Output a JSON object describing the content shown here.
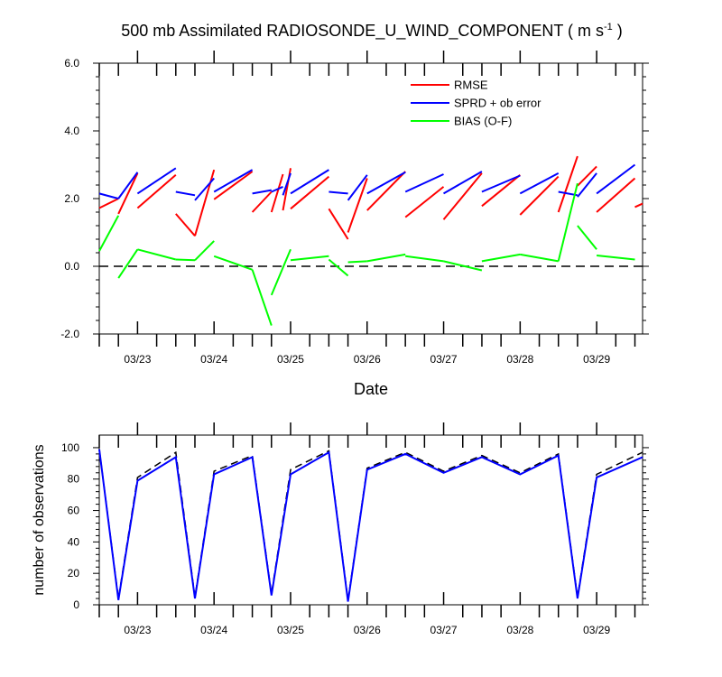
{
  "title": {
    "main": "500 mb Assimilated RADIOSONDE_U_WIND_COMPONENT ( m s",
    "sup": "-1",
    "tail": " )"
  },
  "colors": {
    "rmse": "#ff0000",
    "sprd": "#0000ff",
    "bias": "#00ff00",
    "zero": "#000000",
    "obs_used": "#0000ff",
    "obs_poss": "#000000"
  },
  "chart_data": [
    {
      "type": "line",
      "xlabel": "Date",
      "ylabel": "",
      "xlim": [
        0,
        7.1
      ],
      "ylim": [
        -2.0,
        6.0
      ],
      "yticks": [
        {
          "v": -2.0,
          "label": "-2.0"
        },
        {
          "v": 0.0,
          "label": "0.0"
        },
        {
          "v": 2.0,
          "label": "2.0"
        },
        {
          "v": 4.0,
          "label": "4.0"
        },
        {
          "v": 6.0,
          "label": "6.0"
        }
      ],
      "xticks": [
        {
          "v": 0.5,
          "label": "03/23"
        },
        {
          "v": 1.5,
          "label": "03/24"
        },
        {
          "v": 2.5,
          "label": "03/25"
        },
        {
          "v": 3.5,
          "label": "03/26"
        },
        {
          "v": 4.5,
          "label": "03/27"
        },
        {
          "v": 5.5,
          "label": "03/28"
        },
        {
          "v": 6.5,
          "label": "03/29"
        }
      ],
      "minor_xticks": [
        0.0,
        0.25,
        0.75,
        1.0,
        1.25,
        1.75,
        2.0,
        2.25,
        2.75,
        3.0,
        3.25,
        3.75,
        4.0,
        4.25,
        4.75,
        5.0,
        5.25,
        5.75,
        6.0,
        6.25,
        6.75,
        7.0
      ],
      "legend_position": "top-right",
      "reference_line": {
        "y": 0.0,
        "style": "dashed"
      },
      "series": [
        {
          "name": "RMSE",
          "color_key": "rmse",
          "segments": [
            [
              [
                0.0,
                1.72
              ],
              [
                0.25,
                2.0
              ]
            ],
            [
              [
                0.25,
                1.55
              ],
              [
                0.5,
                2.75
              ]
            ],
            [
              [
                0.5,
                1.72
              ],
              [
                1.0,
                2.7
              ]
            ],
            [
              [
                1.0,
                1.55
              ],
              [
                1.25,
                0.9
              ]
            ],
            [
              [
                1.25,
                0.9
              ],
              [
                1.5,
                2.85
              ]
            ],
            [
              [
                1.5,
                1.98
              ],
              [
                2.0,
                2.8
              ]
            ],
            [
              [
                2.0,
                1.6
              ],
              [
                2.25,
                2.2
              ]
            ],
            [
              [
                2.25,
                1.6
              ],
              [
                2.4,
                2.72
              ]
            ],
            [
              [
                2.4,
                1.65
              ],
              [
                2.5,
                2.9
              ]
            ],
            [
              [
                2.5,
                1.7
              ],
              [
                3.0,
                2.65
              ]
            ],
            [
              [
                3.0,
                1.7
              ],
              [
                3.25,
                0.8
              ]
            ],
            [
              [
                3.25,
                1.0
              ],
              [
                3.5,
                2.6
              ]
            ],
            [
              [
                3.5,
                1.65
              ],
              [
                4.0,
                2.8
              ]
            ],
            [
              [
                4.0,
                1.45
              ],
              [
                4.5,
                2.35
              ]
            ],
            [
              [
                4.5,
                1.38
              ],
              [
                5.0,
                2.75
              ]
            ],
            [
              [
                5.0,
                1.78
              ],
              [
                5.5,
                2.7
              ]
            ],
            [
              [
                5.5,
                1.52
              ],
              [
                6.0,
                2.65
              ]
            ],
            [
              [
                6.0,
                1.6
              ],
              [
                6.25,
                3.25
              ]
            ],
            [
              [
                6.25,
                2.38
              ],
              [
                6.5,
                2.95
              ]
            ],
            [
              [
                6.5,
                1.6
              ],
              [
                7.0,
                2.6
              ]
            ],
            [
              [
                7.0,
                1.75
              ],
              [
                7.1,
                1.85
              ]
            ]
          ]
        },
        {
          "name": "SPRD + ob error",
          "color_key": "sprd",
          "segments": [
            [
              [
                0.0,
                2.15
              ],
              [
                0.25,
                2.0
              ]
            ],
            [
              [
                0.25,
                2.0
              ],
              [
                0.5,
                2.78
              ]
            ],
            [
              [
                0.5,
                2.15
              ],
              [
                1.0,
                2.9
              ]
            ],
            [
              [
                1.0,
                2.2
              ],
              [
                1.25,
                2.1
              ]
            ],
            [
              [
                1.25,
                1.95
              ],
              [
                1.5,
                2.6
              ]
            ],
            [
              [
                1.5,
                2.2
              ],
              [
                2.0,
                2.85
              ]
            ],
            [
              [
                2.0,
                2.15
              ],
              [
                2.25,
                2.25
              ]
            ],
            [
              [
                2.25,
                2.2
              ],
              [
                2.4,
                2.35
              ]
            ],
            [
              [
                2.4,
                2.1
              ],
              [
                2.5,
                2.75
              ]
            ],
            [
              [
                2.5,
                2.15
              ],
              [
                3.0,
                2.85
              ]
            ],
            [
              [
                3.0,
                2.2
              ],
              [
                3.25,
                2.15
              ]
            ],
            [
              [
                3.25,
                1.95
              ],
              [
                3.5,
                2.7
              ]
            ],
            [
              [
                3.5,
                2.15
              ],
              [
                4.0,
                2.78
              ]
            ],
            [
              [
                4.0,
                2.2
              ],
              [
                4.5,
                2.72
              ]
            ],
            [
              [
                4.5,
                2.15
              ],
              [
                5.0,
                2.8
              ]
            ],
            [
              [
                5.0,
                2.2
              ],
              [
                5.5,
                2.68
              ]
            ],
            [
              [
                5.5,
                2.15
              ],
              [
                6.0,
                2.75
              ]
            ],
            [
              [
                6.0,
                2.2
              ],
              [
                6.25,
                2.1
              ]
            ],
            [
              [
                6.25,
                2.05
              ],
              [
                6.5,
                2.75
              ]
            ],
            [
              [
                6.5,
                2.15
              ],
              [
                7.0,
                3.0
              ]
            ]
          ]
        },
        {
          "name": "BIAS (O-F)",
          "color_key": "bias",
          "segments": [
            [
              [
                0.0,
                0.45
              ],
              [
                0.25,
                1.5
              ]
            ],
            [
              [
                0.25,
                -0.35
              ],
              [
                0.5,
                0.5
              ]
            ],
            [
              [
                0.5,
                0.5
              ],
              [
                1.0,
                0.2
              ]
            ],
            [
              [
                1.0,
                0.2
              ],
              [
                1.25,
                0.18
              ]
            ],
            [
              [
                1.25,
                0.18
              ],
              [
                1.5,
                0.75
              ]
            ],
            [
              [
                1.5,
                0.3
              ],
              [
                2.0,
                -0.1
              ]
            ],
            [
              [
                2.0,
                -0.1
              ],
              [
                2.25,
                -1.75
              ]
            ],
            [
              [
                2.25,
                -0.85
              ],
              [
                2.5,
                0.5
              ]
            ],
            [
              [
                2.5,
                0.18
              ],
              [
                3.0,
                0.3
              ]
            ],
            [
              [
                3.0,
                0.2
              ],
              [
                3.25,
                -0.28
              ]
            ],
            [
              [
                3.25,
                0.12
              ],
              [
                3.5,
                0.15
              ]
            ],
            [
              [
                3.5,
                0.15
              ],
              [
                4.0,
                0.35
              ]
            ],
            [
              [
                4.0,
                0.3
              ],
              [
                4.5,
                0.15
              ]
            ],
            [
              [
                4.5,
                0.15
              ],
              [
                5.0,
                -0.12
              ]
            ],
            [
              [
                5.0,
                0.15
              ],
              [
                5.5,
                0.35
              ]
            ],
            [
              [
                5.5,
                0.35
              ],
              [
                6.0,
                0.15
              ]
            ],
            [
              [
                6.0,
                0.15
              ],
              [
                6.25,
                2.45
              ]
            ],
            [
              [
                6.25,
                1.2
              ],
              [
                6.5,
                0.5
              ]
            ],
            [
              [
                6.5,
                0.32
              ],
              [
                7.0,
                0.2
              ]
            ]
          ]
        }
      ]
    },
    {
      "type": "line",
      "xlabel": "",
      "ylabel": "number of observations",
      "xlim": [
        0,
        7.1
      ],
      "ylim": [
        0,
        108
      ],
      "yticks": [
        {
          "v": 0,
          "label": "0"
        },
        {
          "v": 20,
          "label": "20"
        },
        {
          "v": 40,
          "label": "40"
        },
        {
          "v": 60,
          "label": "60"
        },
        {
          "v": 80,
          "label": "80"
        },
        {
          "v": 100,
          "label": "100"
        }
      ],
      "xticks": [
        {
          "v": 0.5,
          "label": "03/23"
        },
        {
          "v": 1.5,
          "label": "03/24"
        },
        {
          "v": 2.5,
          "label": "03/25"
        },
        {
          "v": 3.5,
          "label": "03/26"
        },
        {
          "v": 4.5,
          "label": "03/27"
        },
        {
          "v": 5.5,
          "label": "03/28"
        },
        {
          "v": 6.5,
          "label": "03/29"
        }
      ],
      "minor_xticks": [
        0.0,
        0.25,
        0.75,
        1.0,
        1.25,
        1.75,
        2.0,
        2.25,
        2.75,
        3.0,
        3.25,
        3.75,
        4.0,
        4.25,
        4.75,
        5.0,
        5.25,
        5.75,
        6.0,
        6.25,
        6.75,
        7.0
      ],
      "series": [
        {
          "color_key": "obs_poss",
          "style": "dashed",
          "x": [
            0.0,
            0.25,
            0.5,
            1.0,
            1.25,
            1.5,
            2.0,
            2.25,
            2.5,
            3.0,
            3.25,
            3.5,
            4.0,
            4.5,
            5.0,
            5.5,
            6.0,
            6.25,
            6.5,
            7.1
          ],
          "values": [
            99,
            4,
            81,
            97,
            5,
            85,
            95,
            7,
            86,
            98,
            3,
            87,
            97,
            85,
            95,
            84,
            96,
            5,
            83,
            97
          ]
        },
        {
          "color_key": "obs_used",
          "style": "solid",
          "x": [
            0.0,
            0.25,
            0.5,
            1.0,
            1.25,
            1.5,
            2.0,
            2.25,
            2.5,
            3.0,
            3.25,
            3.5,
            4.0,
            4.5,
            5.0,
            5.5,
            6.0,
            6.25,
            6.5,
            7.1
          ],
          "values": [
            99,
            3,
            79,
            94,
            4,
            83,
            94,
            6,
            83,
            97,
            2,
            86,
            96,
            84,
            94,
            83,
            95,
            4,
            81,
            94
          ]
        }
      ]
    }
  ]
}
